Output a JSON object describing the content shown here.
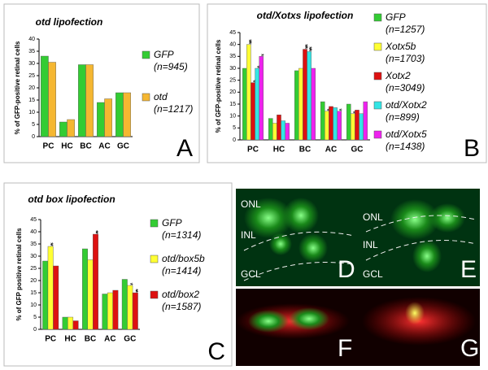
{
  "chart_data": [
    {
      "type": "bar",
      "panel": "A",
      "title": "otd lipofection",
      "y_label": "% of GFP-positive retinal cells",
      "categories": [
        "PC",
        "HC",
        "BC",
        "AC",
        "GC"
      ],
      "ylim": [
        0,
        40
      ],
      "yticks": [
        0,
        5,
        10,
        15,
        20,
        25,
        30,
        35,
        40
      ],
      "series": [
        {
          "name": "GFP",
          "n_label": "(n=945)",
          "color": "#33cc33",
          "values": [
            33,
            6,
            29.5,
            14,
            18
          ],
          "significance": [
            null,
            null,
            null,
            null,
            null
          ]
        },
        {
          "name": "otd",
          "n_label": "(n=1217)",
          "color": "#f5b731",
          "values": [
            30.5,
            7,
            29.5,
            15.5,
            18
          ],
          "significance": [
            null,
            null,
            null,
            null,
            null
          ]
        }
      ]
    },
    {
      "type": "bar",
      "panel": "B",
      "title": "otd/Xotxs lipofection",
      "y_label": "% of GFP-positive retinal cells",
      "categories": [
        "PC",
        "HC",
        "BC",
        "AC",
        "GC"
      ],
      "ylim": [
        0,
        45
      ],
      "yticks": [
        0,
        5,
        10,
        15,
        20,
        25,
        30,
        35,
        40,
        45
      ],
      "series": [
        {
          "name": "GFP",
          "n_label": "(n=1257)",
          "color": "#33cc33",
          "values": [
            30,
            9,
            29,
            16,
            15
          ],
          "significance": [
            null,
            null,
            null,
            null,
            null
          ]
        },
        {
          "name": "Xotx5b",
          "n_label": "(n=1703)",
          "color": "#ffff33",
          "values": [
            40,
            7,
            30,
            12,
            11
          ],
          "significance": [
            "***",
            null,
            null,
            "*",
            "*"
          ]
        },
        {
          "name": "Xotx2",
          "n_label": "(n=3049)",
          "color": "#dd1111",
          "values": [
            24,
            10.5,
            38,
            14,
            12.5
          ],
          "significance": [
            "*",
            null,
            "***",
            null,
            null
          ]
        },
        {
          "name": "otd/Xotx2",
          "n_label": "(n=899)",
          "color": "#33e5e5",
          "values": [
            30,
            8,
            37,
            13.5,
            11
          ],
          "significance": [
            "*",
            null,
            "***",
            null,
            null
          ]
        },
        {
          "name": "otd/Xotx5",
          "n_label": "(n=1438)",
          "color": "#ee22ee",
          "values": [
            35,
            7,
            30,
            12,
            16
          ],
          "significance": [
            "*",
            null,
            null,
            "*",
            null
          ]
        }
      ]
    },
    {
      "type": "bar",
      "panel": "C",
      "title": "otd box lipofection",
      "y_label": "% of GFP positive retinal cells",
      "categories": [
        "PC",
        "HC",
        "BC",
        "AC",
        "GC"
      ],
      "ylim": [
        0,
        45
      ],
      "yticks": [
        0,
        5,
        10,
        15,
        20,
        25,
        30,
        35,
        40,
        45
      ],
      "series": [
        {
          "name": "GFP",
          "n_label": "(n=1314)",
          "color": "#33cc33",
          "values": [
            28,
            5,
            33,
            14.5,
            20.5
          ],
          "significance": [
            null,
            null,
            null,
            null,
            null
          ]
        },
        {
          "name": "otd/box5b",
          "n_label": "(n=1414)",
          "color": "#ffff33",
          "values": [
            34,
            5,
            28.5,
            15,
            18
          ],
          "significance": [
            "**",
            null,
            null,
            null,
            "*"
          ]
        },
        {
          "name": "otd/box2",
          "n_label": "(n=1587)",
          "color": "#dd1111",
          "values": [
            26,
            3.5,
            39,
            16,
            15
          ],
          "significance": [
            null,
            null,
            "**",
            null,
            "**"
          ]
        }
      ]
    }
  ],
  "images": [
    {
      "panel": "D",
      "layers": [
        "ONL",
        "INL",
        "GCL"
      ]
    },
    {
      "panel": "E",
      "layers": [
        "ONL",
        "INL",
        "GCL"
      ]
    },
    {
      "panel": "F"
    },
    {
      "panel": "G"
    }
  ]
}
